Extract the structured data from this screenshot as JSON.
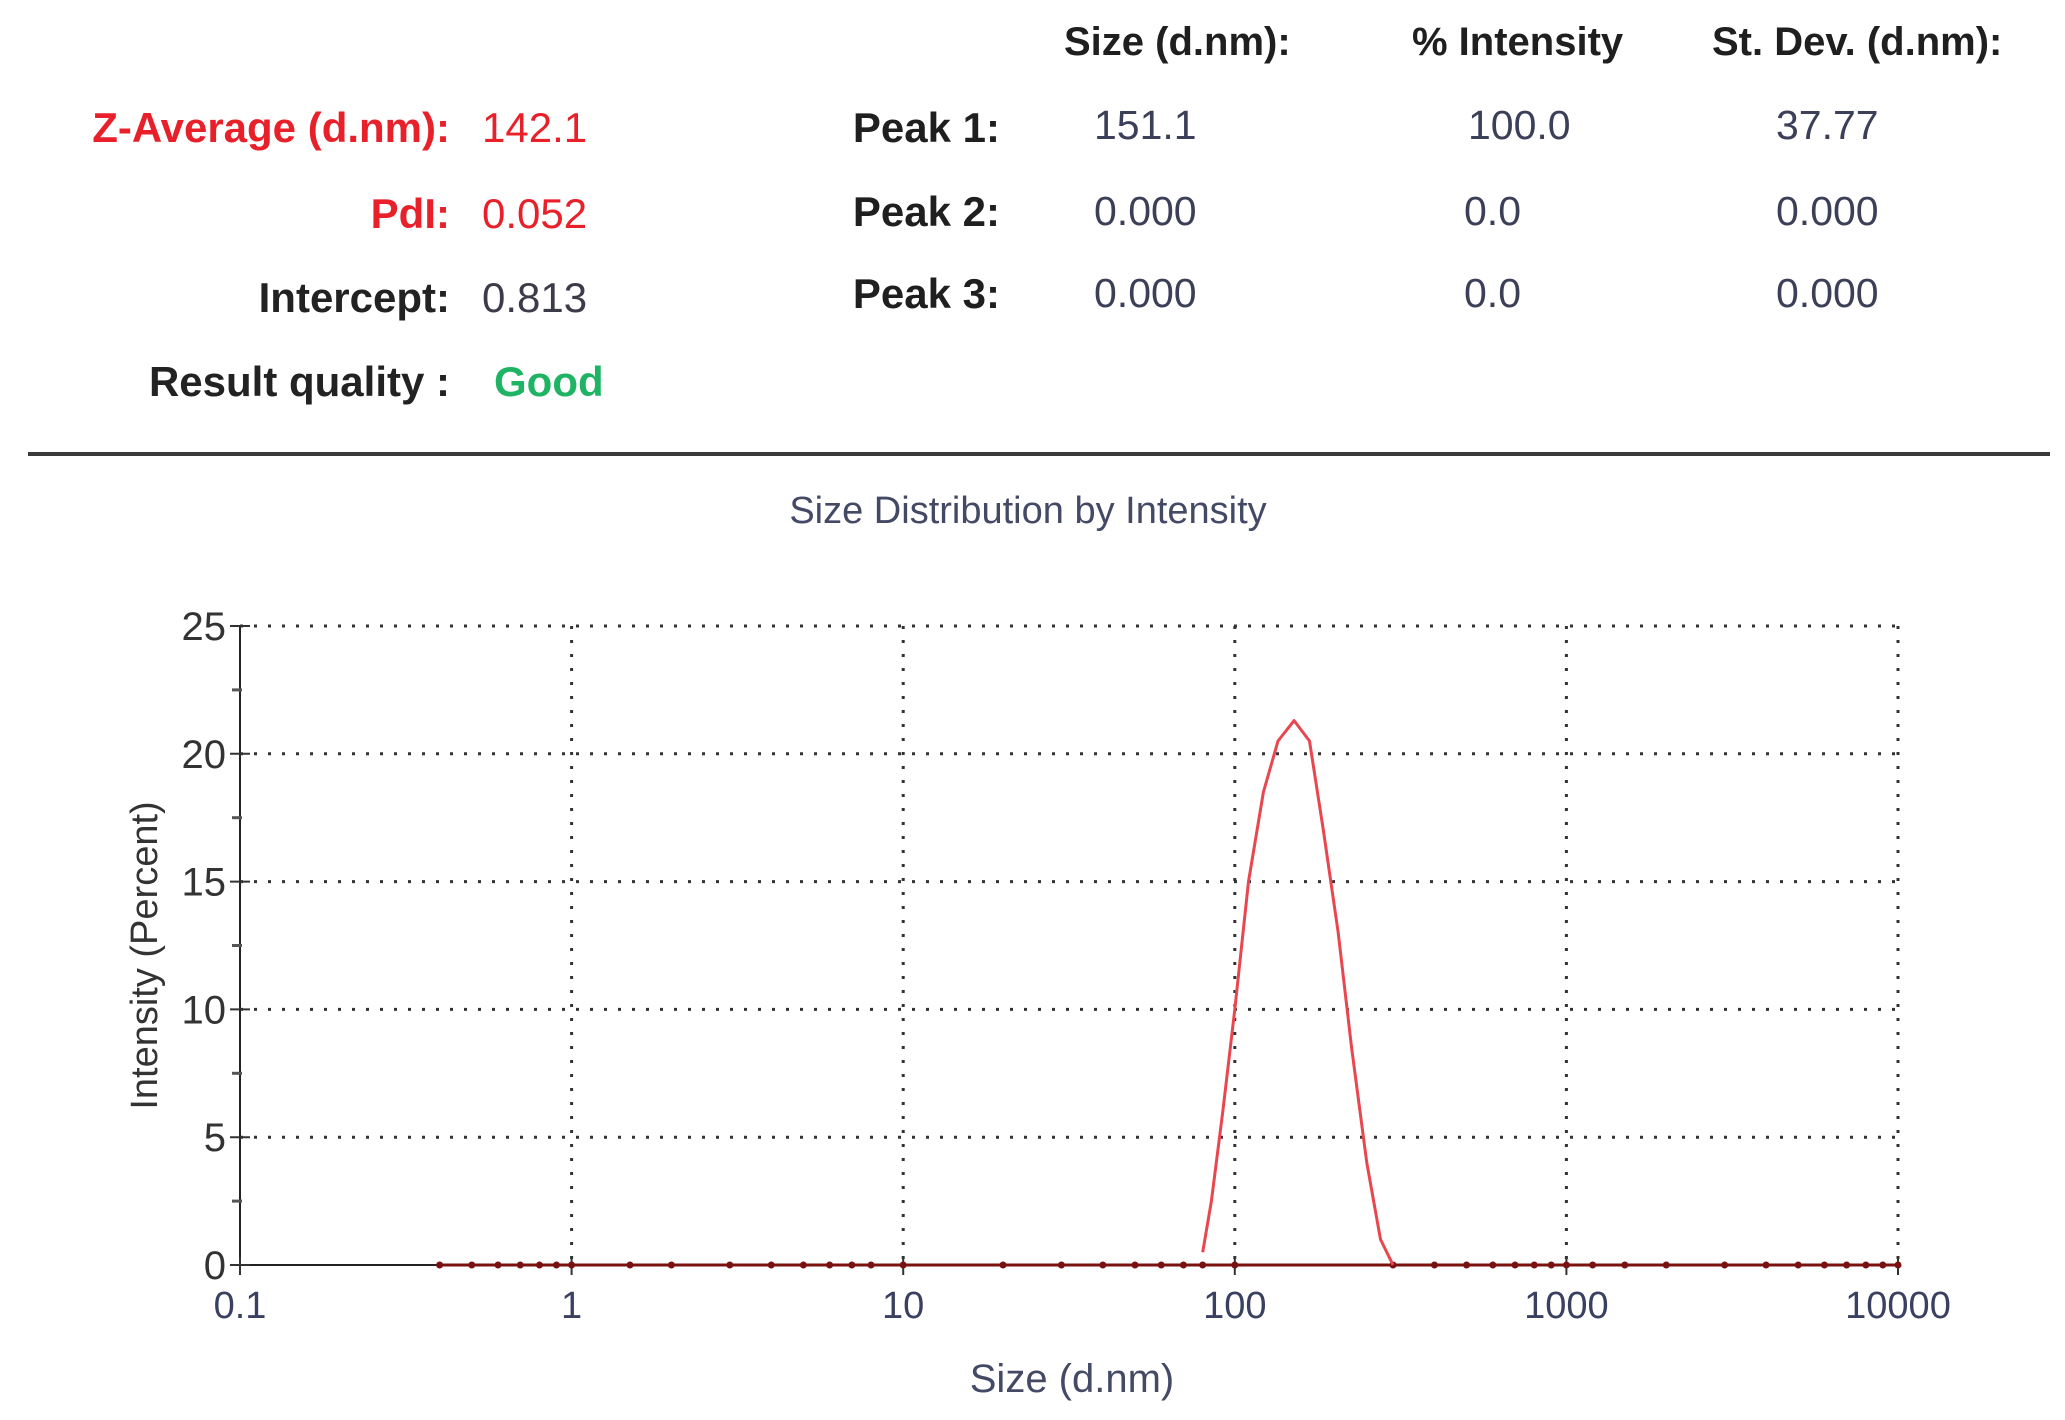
{
  "results": {
    "z_average": {
      "label": "Z-Average (d.nm):",
      "value": "142.1"
    },
    "pdi": {
      "label": "PdI:",
      "value": "0.052"
    },
    "intercept": {
      "label": "Intercept:",
      "value": "0.813"
    },
    "quality": {
      "label": "Result quality :",
      "value": "Good"
    }
  },
  "peaks_table": {
    "headers": [
      "Size (d.nm):",
      "% Intensity",
      "St. Dev. (d.nm):"
    ],
    "rows": [
      {
        "label": "Peak 1:",
        "size": "151.1",
        "intensity": "100.0",
        "stdev": "37.77"
      },
      {
        "label": "Peak 2:",
        "size": "0.000",
        "intensity": "0.0",
        "stdev": "0.000"
      },
      {
        "label": "Peak 3:",
        "size": "0.000",
        "intensity": "0.0",
        "stdev": "0.000"
      }
    ]
  },
  "colors": {
    "red_label": "#e8202a",
    "good": "#1eb464",
    "curve": "#e8474f",
    "baseline": "#7a1010"
  },
  "chart_data": {
    "type": "line",
    "title": "Size Distribution by Intensity",
    "xlabel": "Size (d.nm)",
    "ylabel": "Intensity (Percent)",
    "x_scale": "log",
    "xlim": [
      0.1,
      10000
    ],
    "ylim": [
      0,
      25
    ],
    "x_ticks": [
      "0.1",
      "1",
      "10",
      "100",
      "1000",
      "10000"
    ],
    "y_ticks": [
      "0",
      "5",
      "10",
      "15",
      "20",
      "25"
    ],
    "grid": true,
    "series": [
      {
        "x": [
          80,
          85,
          92,
          100,
          110,
          122,
          135,
          151,
          168,
          185,
          205,
          225,
          250,
          275,
          300
        ],
        "y": [
          0.5,
          2.5,
          6,
          10,
          15,
          18.5,
          20.5,
          21.3,
          20.5,
          17,
          13,
          8.5,
          4,
          1,
          0
        ]
      }
    ],
    "baseline": {
      "x": [
        0.4,
        0.5,
        0.6,
        0.7,
        0.8,
        0.9,
        1,
        1.5,
        2,
        3,
        4,
        5,
        6,
        7,
        8,
        10,
        20,
        30,
        40,
        50,
        60,
        70,
        80,
        100,
        300,
        400,
        500,
        600,
        700,
        800,
        900,
        1000,
        1200,
        1500,
        2000,
        3000,
        4000,
        5000,
        6000,
        7000,
        8000,
        9000,
        10000
      ],
      "y": [
        0,
        0,
        0,
        0,
        0,
        0,
        0,
        0,
        0,
        0,
        0,
        0,
        0,
        0,
        0,
        0,
        0,
        0,
        0,
        0,
        0,
        0,
        0,
        0,
        0,
        0,
        0,
        0,
        0,
        0,
        0,
        0,
        0,
        0,
        0,
        0,
        0,
        0,
        0,
        0,
        0,
        0,
        0
      ]
    }
  }
}
